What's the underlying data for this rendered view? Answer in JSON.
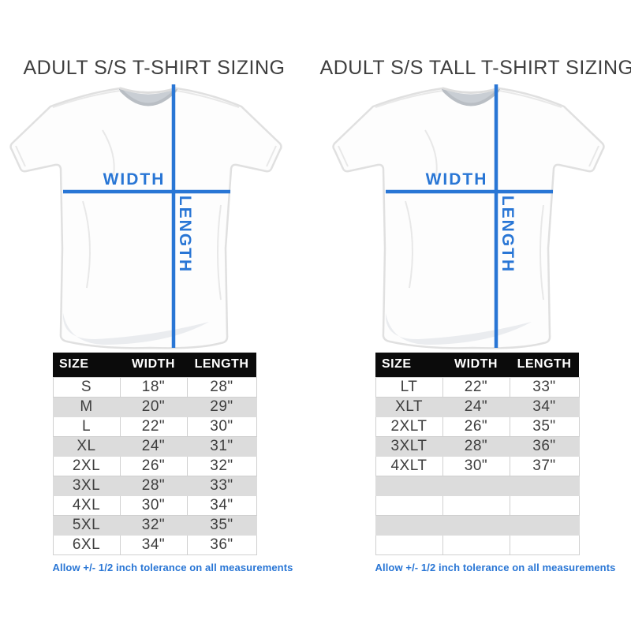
{
  "accent": "#2976d5",
  "footnote": "Allow +/- 1/2 inch tolerance on all measurements",
  "diagram_labels": {
    "width": "WIDTH",
    "length": "LENGTH"
  },
  "chart_data": [
    {
      "type": "table",
      "title": "ADULT S/S T-SHIRT SIZING",
      "columns": [
        "SIZE",
        "WIDTH",
        "LENGTH"
      ],
      "rows": [
        [
          "S",
          "18\"",
          "28\""
        ],
        [
          "M",
          "20\"",
          "29\""
        ],
        [
          "L",
          "22\"",
          "30\""
        ],
        [
          "XL",
          "24\"",
          "31\""
        ],
        [
          "2XL",
          "26\"",
          "32\""
        ],
        [
          "3XL",
          "28\"",
          "33\""
        ],
        [
          "4XL",
          "30\"",
          "34\""
        ],
        [
          "5XL",
          "32\"",
          "35\""
        ],
        [
          "6XL",
          "34\"",
          "36\""
        ]
      ],
      "empty_rows": 0
    },
    {
      "type": "table",
      "title": "ADULT S/S TALL T-SHIRT SIZING",
      "columns": [
        "SIZE",
        "WIDTH",
        "LENGTH"
      ],
      "rows": [
        [
          "LT",
          "22\"",
          "33\""
        ],
        [
          "XLT",
          "24\"",
          "34\""
        ],
        [
          "2XLT",
          "26\"",
          "35\""
        ],
        [
          "3XLT",
          "28\"",
          "36\""
        ],
        [
          "4XLT",
          "30\"",
          "37\""
        ]
      ],
      "empty_rows": 4
    }
  ]
}
